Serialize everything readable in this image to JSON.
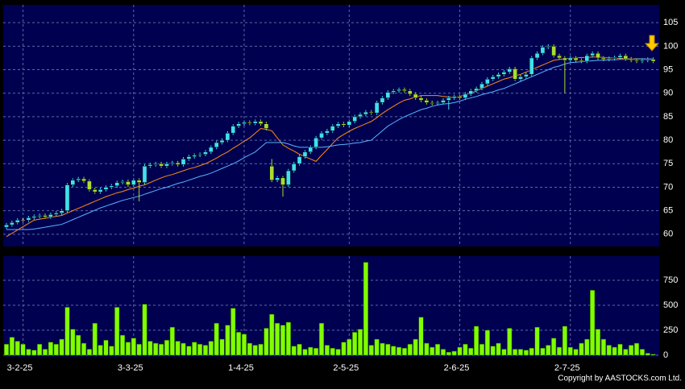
{
  "chart_data": [
    {
      "type": "candlestick",
      "ylim": [
        57.4,
        108.8
      ],
      "yticks": [
        60,
        65,
        70,
        75,
        80,
        85,
        90,
        95,
        100,
        105
      ],
      "grid": true,
      "up_color": "#3fe0f0",
      "down_color": "#a8dc30",
      "flat_color": "#ffffff",
      "open": [
        61.5,
        62,
        62.5,
        63,
        63,
        63.5,
        63.8,
        64,
        63.7,
        64.2,
        64.5,
        65,
        70.5,
        71.5,
        71.8,
        71.3,
        69.5,
        69,
        69.5,
        70,
        70.3,
        71,
        71.2,
        70.5,
        71.5,
        71,
        74.5,
        74.8,
        75,
        74.5,
        75,
        75.2,
        74.8,
        76,
        76.5,
        76.8,
        77,
        77.5,
        78.5,
        79.5,
        80,
        81.5,
        83,
        83.5,
        83.8,
        83.6,
        84,
        83.5,
        74.5,
        71.5,
        72,
        70.5,
        73.5,
        75,
        76.5,
        77.5,
        78.5,
        80.5,
        81.5,
        82,
        83,
        83.5,
        83.2,
        84,
        85,
        85.5,
        86,
        85.8,
        88,
        89,
        90.2,
        90.5,
        90.8,
        90.5,
        89.8,
        89,
        88.5,
        88,
        87.8,
        88,
        88.5,
        89,
        89.3,
        89,
        89.8,
        90.5,
        91,
        92,
        93,
        93.5,
        94,
        94.5,
        95.2,
        93,
        93.5,
        94,
        97.5,
        98.5,
        99.8,
        100,
        98,
        97.5,
        97,
        97.5,
        97,
        96.8,
        98,
        98.5,
        97.5,
        97.2,
        97.4,
        97.6,
        98,
        97.3,
        97,
        96.8,
        97,
        97.2
      ],
      "high": [
        62.4,
        62.9,
        63.4,
        63.4,
        63.9,
        64.2,
        64.4,
        64.4,
        64.6,
        64.9,
        65.4,
        70.9,
        71.9,
        72.2,
        72.2,
        71.7,
        69.9,
        69.9,
        70.4,
        70.7,
        71.4,
        71.6,
        71.6,
        71.9,
        71.9,
        74.9,
        75.2,
        75.4,
        75.4,
        75.4,
        75.6,
        75.6,
        76.4,
        76.9,
        77.2,
        77.4,
        77.9,
        78.9,
        79.9,
        80.4,
        81.9,
        83.4,
        83.9,
        84.2,
        84.2,
        84.4,
        84.4,
        83.9,
        76,
        72.4,
        72.4,
        73.9,
        75.4,
        76.9,
        77.9,
        78.9,
        80.9,
        81.9,
        82.4,
        83.4,
        83.9,
        83.9,
        84.4,
        85.4,
        85.9,
        86.4,
        86.4,
        88.4,
        89.4,
        90.6,
        90.9,
        91.2,
        91.2,
        90.9,
        90.2,
        89.4,
        88.9,
        88.4,
        88.4,
        88.9,
        89.4,
        89.7,
        89.7,
        90.2,
        90.9,
        91.4,
        92.4,
        93.4,
        93.9,
        94.4,
        94.9,
        95.6,
        95.6,
        93.9,
        94.4,
        97.9,
        98.9,
        100.2,
        100.4,
        100.4,
        98.4,
        97.9,
        97.9,
        97.9,
        97.4,
        98.4,
        98.9,
        98.9,
        97.9,
        97.8,
        98,
        98.4,
        98.4,
        97.7,
        97.4,
        97.4,
        97.6,
        97.6
      ],
      "low": [
        61.1,
        61.6,
        62.1,
        62.6,
        62.6,
        63.1,
        63.4,
        63.3,
        63.3,
        63.8,
        64.1,
        64.6,
        70.1,
        71.1,
        70.9,
        69.1,
        68.6,
        68.6,
        69.1,
        69.6,
        69.9,
        70.6,
        70.1,
        70.1,
        67,
        70.6,
        74.1,
        74.4,
        74.1,
        74.1,
        74.6,
        74.4,
        74.4,
        75.6,
        76.1,
        76.4,
        76.6,
        77.1,
        78.1,
        79.1,
        79.6,
        81.1,
        82.6,
        83.1,
        83.2,
        83.2,
        83.1,
        82.1,
        71.1,
        71.1,
        68,
        70.1,
        73.1,
        74.6,
        76.1,
        77.1,
        78.1,
        80.1,
        81.1,
        81.6,
        82.6,
        82.8,
        82.8,
        83.6,
        84.6,
        85.1,
        85.4,
        85.4,
        87.6,
        88.6,
        89.8,
        90.1,
        90.1,
        89.4,
        88.6,
        88.1,
        87.6,
        87.4,
        87.4,
        87.6,
        86.5,
        88.6,
        88.6,
        88.6,
        89.4,
        90.1,
        90.6,
        91.6,
        92.6,
        93.1,
        93.6,
        94.1,
        92.6,
        92.6,
        93.1,
        93.6,
        97.1,
        98.1,
        99.4,
        97.6,
        97.1,
        90,
        96.6,
        96.6,
        96.4,
        96.4,
        97.6,
        97.1,
        96.8,
        96.8,
        97,
        97.2,
        96.9,
        96.6,
        96.4,
        96.4,
        96.6,
        96.4
      ],
      "close": [
        62,
        62.5,
        63,
        63,
        63.5,
        63.8,
        64,
        63.7,
        64.2,
        64.5,
        65,
        70.5,
        71.5,
        71.8,
        71.3,
        69.5,
        69,
        69.5,
        70,
        70.3,
        71,
        71.2,
        70.5,
        71.5,
        71,
        74.5,
        74.8,
        75,
        74.5,
        75,
        75.2,
        74.8,
        76,
        76.5,
        76.8,
        77,
        77.5,
        78.5,
        79.5,
        80,
        81.5,
        83,
        83.5,
        83.8,
        83.6,
        84,
        83.5,
        82.5,
        71.5,
        72,
        70.5,
        73.5,
        75,
        76.5,
        77.5,
        78.5,
        80.5,
        81.5,
        82,
        83,
        83.5,
        83.2,
        84,
        85,
        85.5,
        86,
        85.8,
        88,
        89,
        90.2,
        90.5,
        90.8,
        90.5,
        89.8,
        89,
        88.5,
        88,
        87.8,
        88,
        88.5,
        89,
        89.3,
        89,
        89.8,
        90.5,
        91,
        92,
        93,
        93.5,
        94,
        94.5,
        95.2,
        93,
        93.5,
        94,
        97.5,
        98.5,
        99.8,
        100,
        98,
        97.5,
        97,
        97.5,
        97,
        96.8,
        98,
        98.5,
        97.5,
        97.2,
        97.4,
        97.6,
        98,
        97.3,
        97,
        96.8,
        97,
        97.2,
        96.8
      ],
      "series": [
        {
          "color": "#ff8c1a",
          "values": [
            59.5,
            60.2,
            60.9,
            61.6,
            62.3,
            63,
            63.2,
            63.4,
            63.6,
            63.8,
            64,
            64.5,
            65,
            65.5,
            66,
            66.5,
            67,
            67.5,
            68,
            68.4,
            68.8,
            69.1,
            69.5,
            69.8,
            70.2,
            70.5,
            71,
            71.5,
            72,
            72.4,
            72.7,
            73.1,
            73.5,
            73.9,
            74.2,
            74.6,
            75,
            75.6,
            76.2,
            76.9,
            77.5,
            78.3,
            79,
            79.8,
            80.5,
            81.5,
            82.5,
            82.3,
            82,
            80.5,
            79,
            78.3,
            77.7,
            77,
            76.5,
            76,
            75.5,
            76.8,
            78,
            79.3,
            80.5,
            81.2,
            81.9,
            82.5,
            83,
            83.5,
            84,
            84.8,
            85.7,
            86.5,
            87.2,
            87.9,
            88.5,
            88.8,
            89.2,
            89.5,
            89.5,
            89.5,
            89.5,
            89.3,
            89.2,
            89,
            89.3,
            89.7,
            90,
            90.5,
            91,
            91.5,
            92,
            92.5,
            93,
            93.3,
            93.7,
            94,
            94.5,
            95,
            95.5,
            96,
            96.5,
            97,
            97.2,
            97.3,
            97.5,
            97.5,
            97.6,
            97.6,
            97.7,
            97.7,
            97.6,
            97.5,
            97.5,
            97.4,
            97.4,
            97.3,
            97.3,
            97.3,
            97.2,
            97.2
          ]
        },
        {
          "color": "#5ab4ff",
          "values": [
            61,
            61,
            61,
            61,
            61,
            61.1,
            61.3,
            61.5,
            61.7,
            61.9,
            62.1,
            62.6,
            63.1,
            63.6,
            64.1,
            64.6,
            65.1,
            65.6,
            66,
            66.4,
            66.8,
            67.2,
            67.5,
            67.8,
            68.1,
            68.5,
            68.9,
            69.3,
            69.7,
            70,
            70.4,
            70.8,
            71.1,
            71.5,
            71.9,
            72.3,
            72.6,
            73,
            73.5,
            74,
            74.5,
            75,
            75.6,
            76.3,
            76.9,
            77.5,
            78.5,
            79.5,
            79.5,
            79.5,
            79.5,
            79.2,
            78.8,
            78.5,
            78.5,
            78.5,
            78.5,
            78.5,
            78.6,
            78.8,
            79,
            79.1,
            79.2,
            79.4,
            79.5,
            79.8,
            80,
            81,
            82,
            83,
            83.7,
            84.4,
            85,
            85.5,
            86,
            86.5,
            86.8,
            87.2,
            87.5,
            87.7,
            87.8,
            88,
            88.3,
            88.7,
            89,
            89.3,
            89.7,
            90,
            90.3,
            90.7,
            91,
            91.5,
            92,
            92.5,
            93,
            93.5,
            94,
            94.5,
            95,
            95.5,
            95.8,
            96.2,
            96.5,
            96.6,
            96.7,
            96.8,
            96.9,
            97,
            97,
            97.1,
            97.1,
            97.2,
            97.2,
            97.2,
            97.3,
            97.3,
            97.3,
            97.3
          ]
        }
      ]
    },
    {
      "type": "bar",
      "color": "#80ff00",
      "categories": [
        null,
        null,
        null,
        "3-2-25",
        null,
        null,
        null,
        null,
        null,
        null,
        null,
        null,
        null,
        null,
        null,
        null,
        null,
        null,
        null,
        null,
        null,
        null,
        null,
        "3-3-25",
        null,
        null,
        null,
        null,
        null,
        null,
        null,
        null,
        null,
        null,
        null,
        null,
        null,
        null,
        null,
        null,
        null,
        null,
        null,
        "1-4-25",
        null,
        null,
        null,
        null,
        null,
        null,
        null,
        null,
        null,
        null,
        null,
        null,
        null,
        null,
        null,
        null,
        null,
        null,
        "2-5-25",
        null,
        null,
        null,
        null,
        null,
        null,
        null,
        null,
        null,
        null,
        null,
        null,
        null,
        null,
        null,
        null,
        null,
        null,
        null,
        "2-6-25",
        null,
        null,
        null,
        null,
        null,
        null,
        null,
        null,
        null,
        null,
        null,
        null,
        null,
        null,
        null,
        null,
        null,
        null,
        null,
        "2-7-25",
        null,
        null,
        null,
        null,
        null,
        null,
        null,
        null,
        null,
        null,
        null,
        null,
        null,
        null,
        null
      ],
      "values": [
        110,
        180,
        140,
        110,
        60,
        50,
        110,
        60,
        130,
        110,
        160,
        480,
        260,
        200,
        120,
        60,
        320,
        100,
        150,
        90,
        480,
        200,
        130,
        170,
        110,
        510,
        140,
        120,
        110,
        150,
        280,
        140,
        120,
        90,
        130,
        110,
        100,
        140,
        320,
        160,
        300,
        470,
        230,
        210,
        120,
        100,
        110,
        270,
        410,
        320,
        300,
        330,
        90,
        110,
        60,
        80,
        70,
        320,
        100,
        70,
        60,
        130,
        160,
        230,
        260,
        930,
        100,
        160,
        120,
        110,
        90,
        80,
        70,
        110,
        160,
        380,
        120,
        80,
        110,
        60,
        30,
        40,
        80,
        110,
        70,
        290,
        110,
        250,
        90,
        120,
        60,
        270,
        60,
        60,
        50,
        70,
        280,
        70,
        100,
        170,
        80,
        290,
        80,
        60,
        120,
        160,
        650,
        260,
        160,
        100,
        80,
        110,
        60,
        100,
        120,
        60,
        20,
        10
      ],
      "ylim": [
        -16,
        992
      ],
      "yticks": [
        0,
        250,
        500,
        750
      ],
      "grid": true
    }
  ],
  "copyright": "Copyright by AASTOCKS.com Ltd."
}
